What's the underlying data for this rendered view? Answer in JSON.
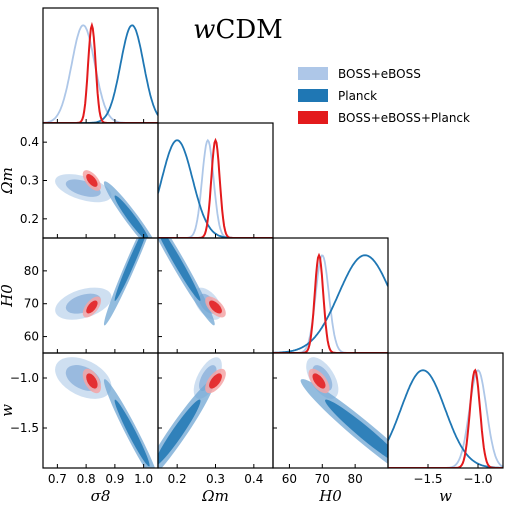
{
  "title_prefix": "w",
  "title_suffix": "CDM",
  "legend": [
    {
      "label": "BOSS+eBOSS",
      "color": "#aec7e8"
    },
    {
      "label": "Planck",
      "color": "#1f77b4"
    },
    {
      "label": "BOSS+eBOSS+Planck",
      "color": "#e31a1c"
    }
  ],
  "chart_data": {
    "type": "corner",
    "parameters": [
      {
        "key": "sigma8",
        "label": "σ8",
        "range": [
          0.65,
          1.05
        ],
        "ticks": [
          "0.7",
          "0.8",
          "0.9",
          "1.0"
        ],
        "tick_values": [
          0.7,
          0.8,
          0.9,
          1.0
        ]
      },
      {
        "key": "omega_m",
        "label": "Ωm",
        "range": [
          0.15,
          0.45
        ],
        "ticks": [
          "0.2",
          "0.3",
          "0.4"
        ],
        "tick_values": [
          0.2,
          0.3,
          0.4
        ]
      },
      {
        "key": "H0",
        "label": "H0",
        "range": [
          55,
          90
        ],
        "ticks": [
          "60",
          "70",
          "80"
        ],
        "tick_values": [
          60,
          70,
          80
        ]
      },
      {
        "key": "w",
        "label": "w",
        "range": [
          -1.9,
          -0.75
        ],
        "ticks": [
          "−1.5",
          "−1.0"
        ],
        "tick_values": [
          -1.5,
          -1.0
        ]
      }
    ],
    "y_ticks": {
      "omega_m": {
        "ticks": [
          "0.2",
          "0.3",
          "0.4"
        ],
        "tick_values": [
          0.2,
          0.3,
          0.4
        ]
      },
      "H0": {
        "ticks": [
          "60",
          "70",
          "80"
        ],
        "tick_values": [
          60,
          70,
          80
        ]
      },
      "w": {
        "ticks": [
          "−1.5",
          "−1.0"
        ],
        "tick_values": [
          -1.5,
          -1.0
        ]
      }
    },
    "series": [
      {
        "name": "BOSS+eBOSS",
        "color": "#aec7e8",
        "mean": {
          "sigma8": 0.79,
          "omega_m": 0.28,
          "H0": 70.0,
          "w": -1.0
        },
        "sd": {
          "sigma8": 0.04,
          "omega_m": 0.015,
          "H0": 2.0,
          "w": 0.085
        }
      },
      {
        "name": "Planck",
        "color": "#1f77b4",
        "mean": {
          "sigma8": 0.96,
          "omega_m": 0.2,
          "H0": 83.0,
          "w": -1.55
        },
        "sd": {
          "sigma8": 0.04,
          "omega_m": 0.04,
          "H0": 8.0,
          "w": 0.22
        }
      },
      {
        "name": "BOSS+eBOSS+Planck",
        "color": "#e31a1c",
        "mean": {
          "sigma8": 0.82,
          "omega_m": 0.3,
          "H0": 69.0,
          "w": -1.03
        },
        "sd": {
          "sigma8": 0.013,
          "omega_m": 0.011,
          "H0": 1.3,
          "w": 0.05
        }
      }
    ]
  }
}
